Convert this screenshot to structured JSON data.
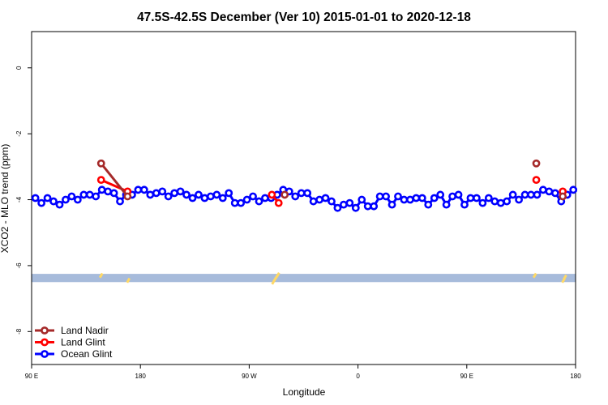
{
  "chart_data": {
    "type": "line",
    "title": "47.5S-42.5S December (Ver 10)   2015-01-01 to 2020-12-18",
    "xlabel": "Longitude",
    "ylabel": "XCO2 - MLO trend (ppm)",
    "xlim": [
      0,
      360
    ],
    "ylim": [
      -9,
      1.1
    ],
    "x_ticks": [
      {
        "value": 0,
        "label": "90 E"
      },
      {
        "value": 72,
        "label": "180"
      },
      {
        "value": 144,
        "label": "90 W"
      },
      {
        "value": 216,
        "label": "0"
      },
      {
        "value": 288,
        "label": "90 E"
      },
      {
        "value": 360,
        "label": "180"
      }
    ],
    "y_ticks": [
      0,
      -2,
      -4,
      -6,
      -8
    ],
    "series": [
      {
        "name": "Land Nadir",
        "color": "#a52a2a",
        "segments": [
          {
            "x": [
              46,
              63.5
            ],
            "y": [
              -2.9,
              -3.9
            ]
          },
          {
            "x": [
              167.5
            ],
            "y": [
              -3.85
            ]
          },
          {
            "x": [
              334
            ],
            "y": [
              -2.9
            ]
          },
          {
            "x": [
              351.5
            ],
            "y": [
              -3.9
            ]
          }
        ]
      },
      {
        "name": "Land Glint",
        "color": "#ff0000",
        "segments": [
          {
            "x": [
              46,
              63.5
            ],
            "y": [
              -3.4,
              -3.75
            ]
          },
          {
            "x": [
              159,
              163.5
            ],
            "y": [
              -3.85,
              -4.1
            ]
          },
          {
            "x": [
              334
            ],
            "y": [
              -3.4
            ]
          },
          {
            "x": [
              351.5
            ],
            "y": [
              -3.75
            ]
          }
        ]
      },
      {
        "name": "Ocean Glint",
        "color": "#0000ff",
        "segments": [
          {
            "x": [
              2.5,
              6.5,
              10.5,
              14.5,
              18.5,
              22.5,
              26.5,
              30.5,
              34.5,
              38.5,
              42.5,
              46.5,
              50.5,
              54.5,
              58.5,
              62.5,
              66.5,
              70.5,
              74.5,
              78.5,
              82.5,
              86.5,
              90.5,
              94.5,
              98.5,
              102.5,
              106.5,
              110.5,
              114.5,
              118.5,
              122.5,
              126.5,
              130.5,
              134.5,
              138.5,
              142.5,
              146.5,
              150.5,
              154.5,
              158.5,
              162.5,
              166.5,
              170.5,
              174.5,
              178.5,
              182.5,
              186.5,
              190.5,
              194.5,
              198.5,
              202.5,
              206.5,
              210.5,
              214.5,
              218.5,
              222.5,
              226.5,
              230.5,
              234.5,
              238.5,
              242.5,
              246.5,
              250.5,
              254.5,
              258.5,
              262.5,
              266.5,
              270.5,
              274.5,
              278.5,
              282.5,
              286.5,
              290.5,
              294.5,
              298.5,
              302.5,
              306.5,
              310.5,
              314.5,
              318.5,
              322.5,
              326.5,
              330.5,
              334.5,
              338.5,
              342.5,
              346.5,
              350.5,
              354.5,
              358.5
            ],
            "y": [
              -3.95,
              -4.1,
              -3.95,
              -4.05,
              -4.15,
              -4.0,
              -3.9,
              -4.0,
              -3.85,
              -3.85,
              -3.9,
              -3.7,
              -3.75,
              -3.8,
              -4.05,
              -3.85,
              -3.85,
              -3.7,
              -3.7,
              -3.85,
              -3.8,
              -3.75,
              -3.9,
              -3.8,
              -3.75,
              -3.85,
              -3.95,
              -3.85,
              -3.95,
              -3.9,
              -3.85,
              -3.95,
              -3.8,
              -4.1,
              -4.1,
              -4.0,
              -3.9,
              -4.05,
              -3.95,
              -3.95,
              -3.85,
              -3.7,
              -3.75,
              -3.9,
              -3.8,
              -3.8,
              -4.05,
              -4.0,
              -3.95,
              -4.05,
              -4.25,
              -4.15,
              -4.1,
              -4.25,
              -4.0,
              -4.2,
              -4.2,
              -3.9,
              -3.9,
              -4.15,
              -3.9,
              -4.0,
              -4.0,
              -3.95,
              -3.95,
              -4.15,
              -3.95,
              -3.85,
              -4.15,
              -3.9,
              -3.85,
              -4.15,
              -3.95,
              -3.95,
              -4.1,
              -3.95,
              -4.05,
              -4.1,
              -4.05,
              -3.85,
              -4.0,
              -3.85,
              -3.85,
              -3.85,
              -3.7,
              -3.75,
              -3.8,
              -4.05,
              -3.85,
              -3.7
            ]
          }
        ]
      }
    ],
    "background_band": {
      "y_range": [
        -6.25,
        -6.5
      ],
      "color": "#a7bbdb"
    },
    "land_markers": {
      "color": "#ffd966",
      "points": [
        {
          "x": 46,
          "y": -6.3
        },
        {
          "x": 64,
          "y": -6.45
        },
        {
          "x": 160,
          "y": -6.5
        },
        {
          "x": 161,
          "y": -6.42
        },
        {
          "x": 162,
          "y": -6.35
        },
        {
          "x": 163,
          "y": -6.28
        },
        {
          "x": 333,
          "y": -6.3
        },
        {
          "x": 352,
          "y": -6.45
        },
        {
          "x": 353,
          "y": -6.35
        }
      ]
    },
    "legend": {
      "position": "bottom-left"
    },
    "grid": false
  }
}
